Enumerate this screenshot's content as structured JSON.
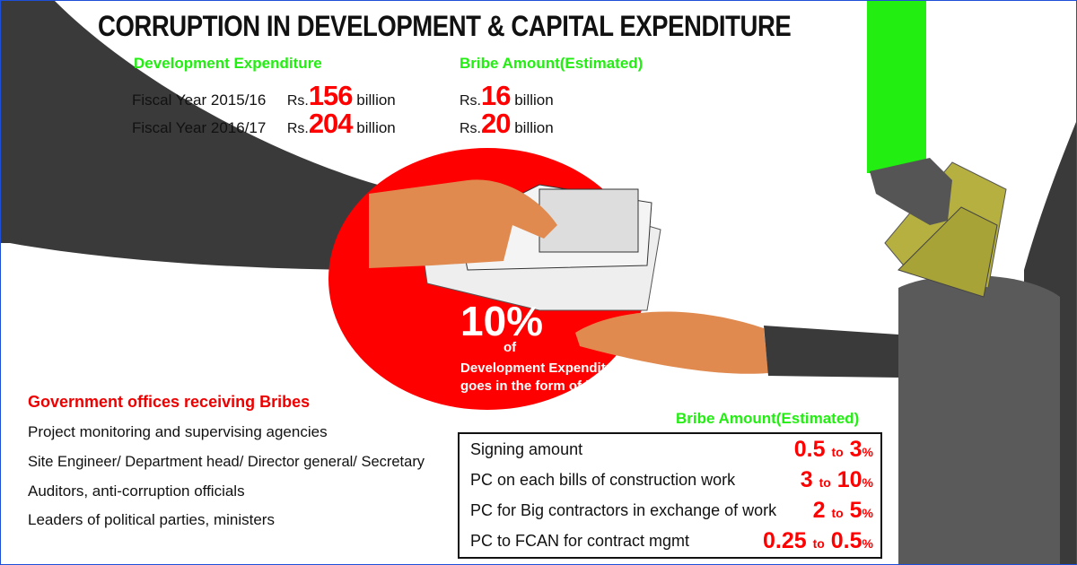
{
  "title": "CORRUPTION IN DEVELOPMENT & CAPITAL EXPENDITURE",
  "development": {
    "heading": "Development Expenditure",
    "rows": [
      {
        "label": "Fiscal Year 2015/16",
        "prefix": "Rs.",
        "value": "156",
        "unit": "billion"
      },
      {
        "label": "Fiscal Year 2016/17",
        "prefix": "Rs.",
        "value": "204",
        "unit": "billion"
      }
    ]
  },
  "bribe_top": {
    "heading": "Bribe Amount(Estimated)",
    "rows": [
      {
        "prefix": "Rs.",
        "value": "16",
        "unit": "billion"
      },
      {
        "prefix": "Rs.",
        "value": "20",
        "unit": "billion"
      }
    ]
  },
  "center": {
    "percent": "10%",
    "of": "of",
    "line1": "Development Expenditure",
    "line2": "goes in the form of bribe"
  },
  "offices": {
    "heading": "Government offices receiving Bribes",
    "items": [
      "Project monitoring and supervising agencies",
      "Site Engineer/ Department head/ Director general/ Secretary",
      "Auditors, anti-corruption officials",
      "Leaders of political parties, ministers"
    ]
  },
  "bribe_table": {
    "heading": "Bribe Amount(Estimated)",
    "connector": "to",
    "unit": "%",
    "rows": [
      {
        "label": "Signing amount",
        "from": "0.5",
        "to": "3"
      },
      {
        "label": "PC on each bills of construction work",
        "from": "3",
        "to": "10"
      },
      {
        "label": "PC for Big contractors in exchange of work",
        "from": "2",
        "to": "5"
      },
      {
        "label": "PC to FCAN for contract mgmt",
        "from": "0.25",
        "to": "0.5"
      }
    ]
  },
  "colors": {
    "accent_red": "#ff0000",
    "heading_green": "#22ee11",
    "sleeve": "#3a3a3a",
    "skin": "#e08a50",
    "money": "#b5b040"
  }
}
